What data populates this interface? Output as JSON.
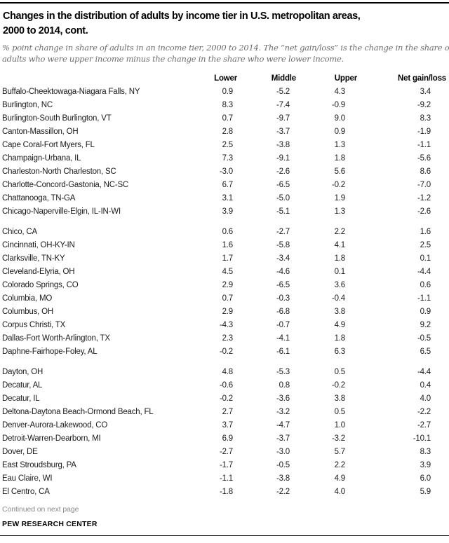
{
  "header": {
    "title_lines": [
      "Changes in the distribution of adults by income tier in U.S. metropolitan areas,",
      "2000 to 2014, cont."
    ],
    "subtitle_lines": [
      "% point change in share of adults in an income tier, 2000 to 2014. The “net gain/loss” is the change in the share of",
      "adults who were upper income minus the change in the share who were lower income."
    ]
  },
  "table": {
    "columns": {
      "area": "",
      "lower": "Lower",
      "middle": "Middle",
      "upper": "Upper",
      "net": "Net gain/loss"
    },
    "groups": [
      {
        "rows": [
          {
            "area": "Buffalo-Cheektowaga-Niagara Falls, NY",
            "lower": "0.9",
            "middle": "-5.2",
            "upper": "4.3",
            "net": "3.4"
          },
          {
            "area": "Burlington, NC",
            "lower": "8.3",
            "middle": "-7.4",
            "upper": "-0.9",
            "net": "-9.2"
          },
          {
            "area": "Burlington-South Burlington, VT",
            "lower": "0.7",
            "middle": "-9.7",
            "upper": "9.0",
            "net": "8.3"
          },
          {
            "area": "Canton-Massillon, OH",
            "lower": "2.8",
            "middle": "-3.7",
            "upper": "0.9",
            "net": "-1.9"
          },
          {
            "area": "Cape Coral-Fort Myers, FL",
            "lower": "2.5",
            "middle": "-3.8",
            "upper": "1.3",
            "net": "-1.1"
          },
          {
            "area": "Champaign-Urbana, IL",
            "lower": "7.3",
            "middle": "-9.1",
            "upper": "1.8",
            "net": "-5.6"
          },
          {
            "area": "Charleston-North Charleston, SC",
            "lower": "-3.0",
            "middle": "-2.6",
            "upper": "5.6",
            "net": "8.6"
          },
          {
            "area": "Charlotte-Concord-Gastonia, NC-SC",
            "lower": "6.7",
            "middle": "-6.5",
            "upper": "-0.2",
            "net": "-7.0"
          },
          {
            "area": "Chattanooga, TN-GA",
            "lower": "3.1",
            "middle": "-5.0",
            "upper": "1.9",
            "net": "-1.2"
          },
          {
            "area": "Chicago-Naperville-Elgin, IL-IN-WI",
            "lower": "3.9",
            "middle": "-5.1",
            "upper": "1.3",
            "net": "-2.6"
          }
        ]
      },
      {
        "rows": [
          {
            "area": "Chico, CA",
            "lower": "0.6",
            "middle": "-2.7",
            "upper": "2.2",
            "net": "1.6"
          },
          {
            "area": "Cincinnati, OH-KY-IN",
            "lower": "1.6",
            "middle": "-5.8",
            "upper": "4.1",
            "net": "2.5"
          },
          {
            "area": "Clarksville, TN-KY",
            "lower": "1.7",
            "middle": "-3.4",
            "upper": "1.8",
            "net": "0.1"
          },
          {
            "area": "Cleveland-Elyria, OH",
            "lower": "4.5",
            "middle": "-4.6",
            "upper": "0.1",
            "net": "-4.4"
          },
          {
            "area": "Colorado Springs, CO",
            "lower": "2.9",
            "middle": "-6.5",
            "upper": "3.6",
            "net": "0.6"
          },
          {
            "area": "Columbia, MO",
            "lower": "0.7",
            "middle": "-0.3",
            "upper": "-0.4",
            "net": "-1.1"
          },
          {
            "area": "Columbus, OH",
            "lower": "2.9",
            "middle": "-6.8",
            "upper": "3.8",
            "net": "0.9"
          },
          {
            "area": "Corpus Christi, TX",
            "lower": "-4.3",
            "middle": "-0.7",
            "upper": "4.9",
            "net": "9.2"
          },
          {
            "area": "Dallas-Fort Worth-Arlington, TX",
            "lower": "2.3",
            "middle": "-4.1",
            "upper": "1.8",
            "net": "-0.5"
          },
          {
            "area": "Daphne-Fairhope-Foley, AL",
            "lower": "-0.2",
            "middle": "-6.1",
            "upper": "6.3",
            "net": "6.5"
          }
        ]
      },
      {
        "rows": [
          {
            "area": "Dayton, OH",
            "lower": "4.8",
            "middle": "-5.3",
            "upper": "0.5",
            "net": "-4.4"
          },
          {
            "area": "Decatur, AL",
            "lower": "-0.6",
            "middle": "0.8",
            "upper": "-0.2",
            "net": "0.4"
          },
          {
            "area": "Decatur, IL",
            "lower": "-0.2",
            "middle": "-3.6",
            "upper": "3.8",
            "net": "4.0"
          },
          {
            "area": "Deltona-Daytona Beach-Ormond Beach, FL",
            "lower": "2.7",
            "middle": "-3.2",
            "upper": "0.5",
            "net": "-2.2"
          },
          {
            "area": "Denver-Aurora-Lakewood, CO",
            "lower": "3.7",
            "middle": "-4.7",
            "upper": "1.0",
            "net": "-2.7"
          },
          {
            "area": "Detroit-Warren-Dearborn, MI",
            "lower": "6.9",
            "middle": "-3.7",
            "upper": "-3.2",
            "net": "-10.1"
          },
          {
            "area": "Dover, DE",
            "lower": "-2.7",
            "middle": "-3.0",
            "upper": "5.7",
            "net": "8.3"
          },
          {
            "area": "East Stroudsburg, PA",
            "lower": "-1.7",
            "middle": "-0.5",
            "upper": "2.2",
            "net": "3.9"
          },
          {
            "area": "Eau Claire, WI",
            "lower": "-1.1",
            "middle": "-3.8",
            "upper": "4.9",
            "net": "6.0"
          },
          {
            "area": "El Centro, CA",
            "lower": "-1.8",
            "middle": "-2.2",
            "upper": "4.0",
            "net": "5.9"
          }
        ]
      }
    ]
  },
  "footer": {
    "continued": "Continued on next page",
    "source": "PEW RESEARCH CENTER"
  },
  "colors": {
    "rule": "#000000",
    "subtitle_text": "#6e6e6e",
    "muted_text": "#8a8a8a",
    "body_text": "#1a1a1a"
  }
}
